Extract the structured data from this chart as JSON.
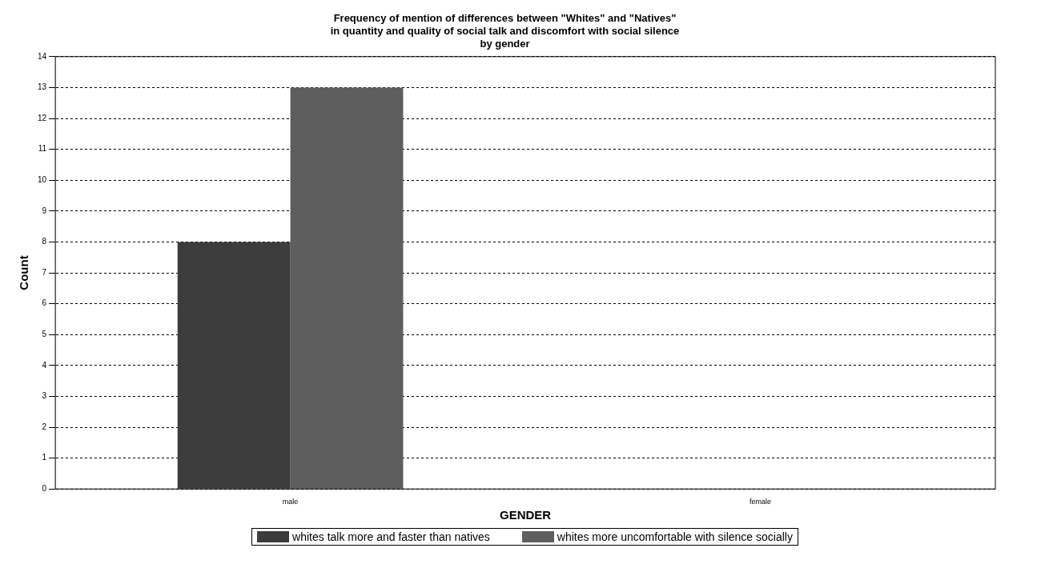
{
  "chart_data": {
    "type": "bar",
    "title": "Frequency of mention of differences between \"Whites\" and \"Natives\"\nin quantity and quality of social talk and discomfort with social silence\nby gender",
    "xlabel": "GENDER",
    "ylabel": "Count",
    "categories": [
      "male",
      "female"
    ],
    "series": [
      {
        "name": "whites talk more and faster than natives",
        "color": "#3c3c3c",
        "values": [
          8,
          0
        ]
      },
      {
        "name": "whites more uncomfortable with silence socially",
        "color": "#5e5e5e",
        "values": [
          13,
          0
        ]
      }
    ],
    "ylim": [
      0,
      14
    ],
    "yticks": [
      0,
      1,
      2,
      3,
      4,
      5,
      6,
      7,
      8,
      9,
      10,
      11,
      12,
      13,
      14
    ],
    "grid": "y",
    "legend": "bottom"
  }
}
